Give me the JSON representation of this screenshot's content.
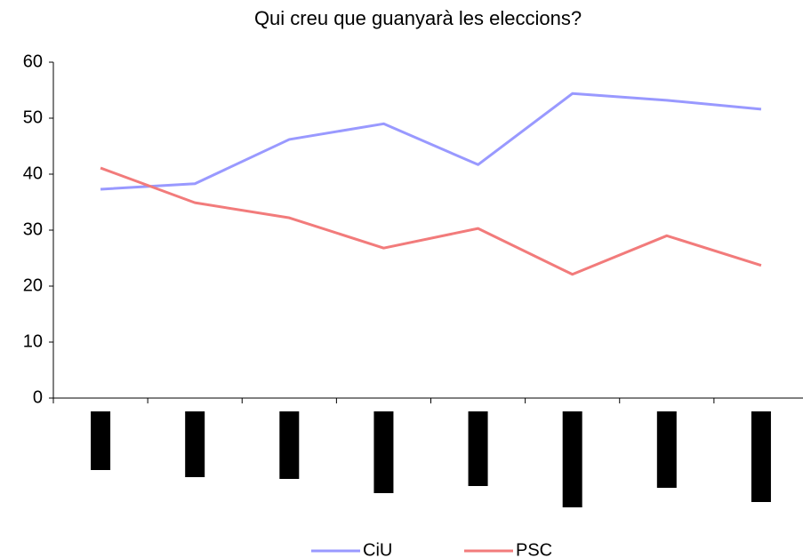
{
  "chart_data": {
    "type": "line",
    "title": "Qui creu que guanyarà les eleccions?",
    "categories": [
      null,
      null,
      null,
      null,
      null,
      null,
      null,
      null
    ],
    "series": [
      {
        "name": "CiU",
        "color": "#9999ff",
        "values": [
          37.3,
          38.3,
          46.2,
          49.0,
          41.7,
          54.4,
          53.2,
          51.6
        ]
      },
      {
        "name": "PSC",
        "color": "#f27b7b",
        "values": [
          41.1,
          34.9,
          32.2,
          26.8,
          30.3,
          22.1,
          29.0,
          23.7
        ]
      }
    ],
    "ylim": [
      0,
      60
    ],
    "yticks": [
      0,
      10,
      20,
      30,
      40,
      50,
      60
    ],
    "grid": false,
    "legend": "bottom"
  }
}
